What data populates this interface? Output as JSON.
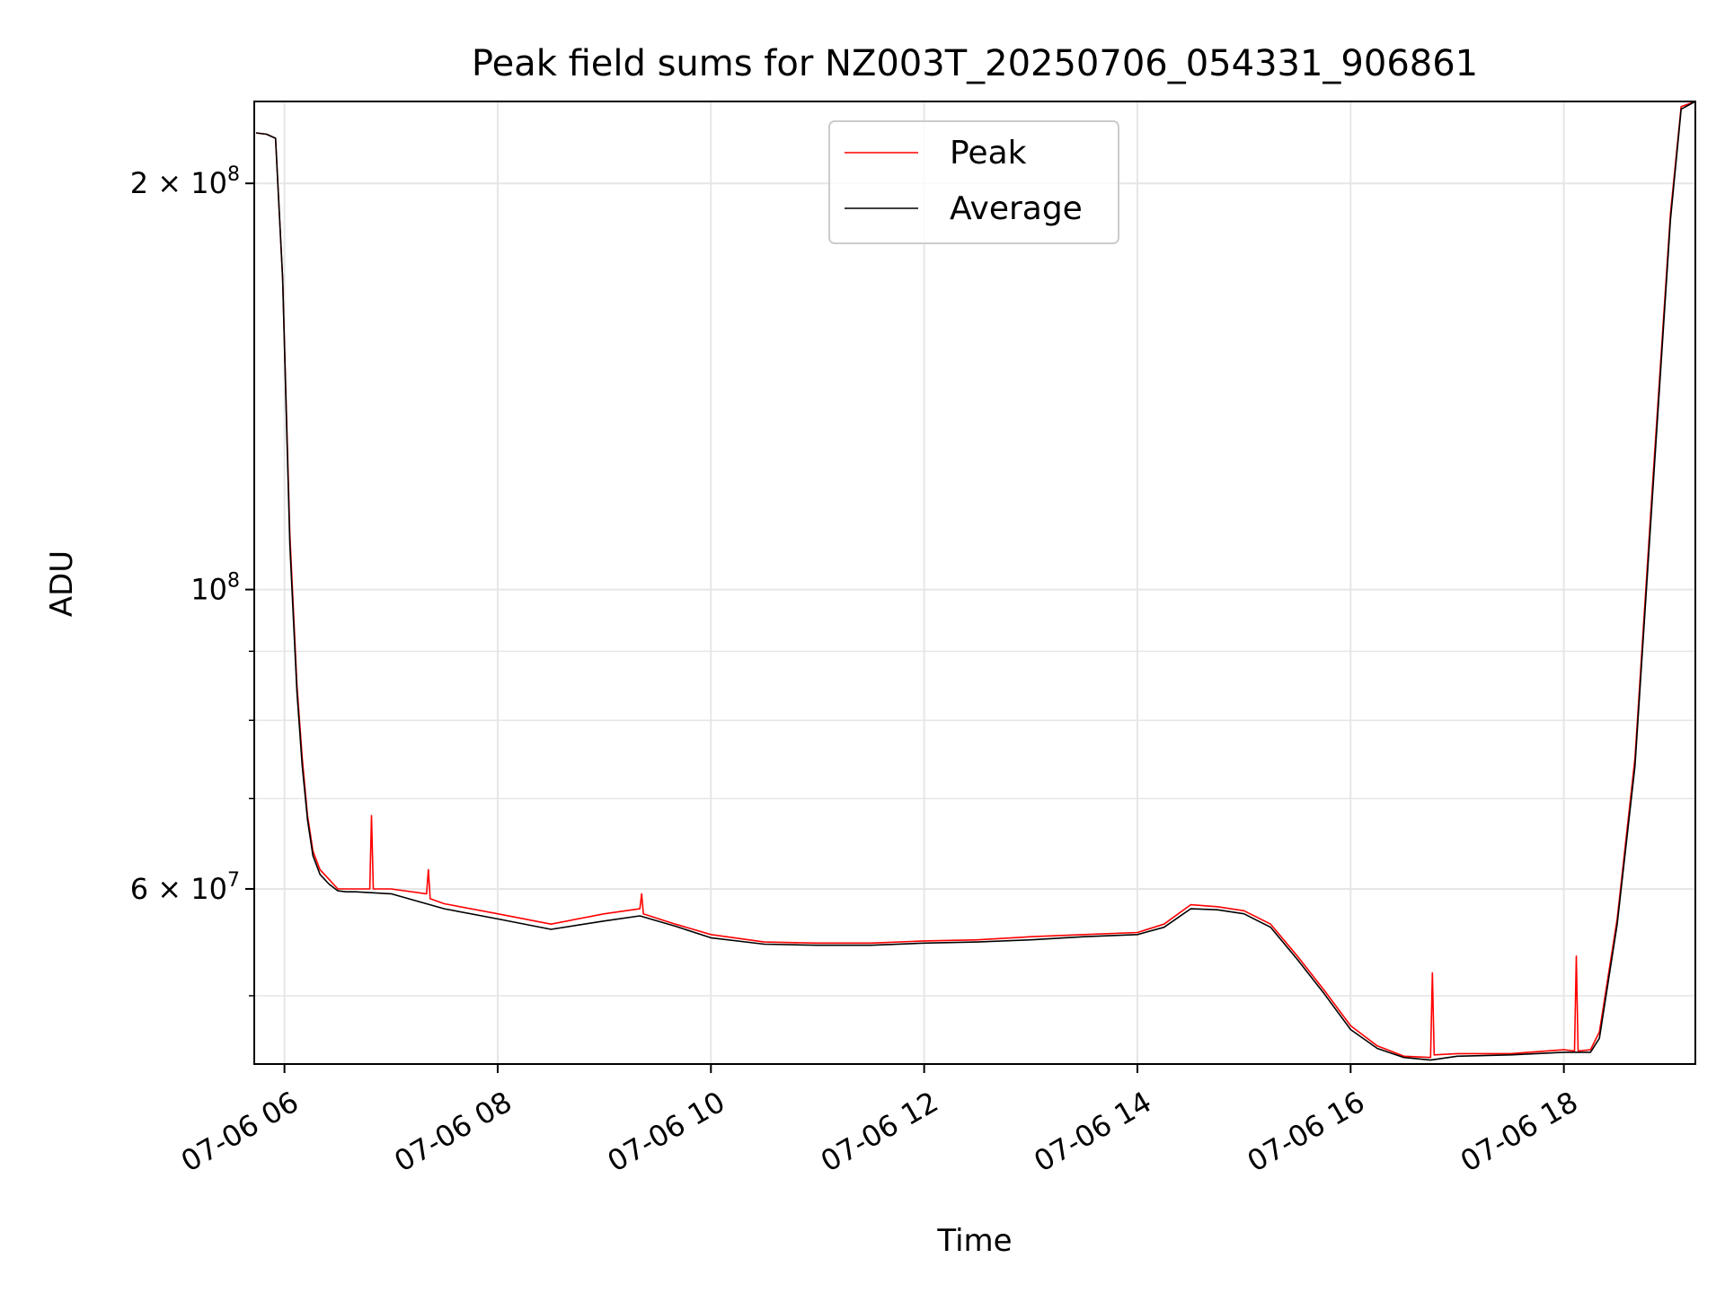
{
  "chart_data": {
    "type": "line",
    "title": "Peak field sums for NZ003T_20250706_054331_906861",
    "xlabel": "Time",
    "ylabel": "ADU",
    "yscale": "log",
    "ylim": [
      44500000,
      230000000
    ],
    "xlim": [
      "2025-07-06 05:43",
      "2025-07-06 19:14"
    ],
    "grid": true,
    "legend_position": "upper center",
    "x_ticks": [
      {
        "value": "2025-07-06 06:00",
        "label": "07-06 06"
      },
      {
        "value": "2025-07-06 08:00",
        "label": "07-06 08"
      },
      {
        "value": "2025-07-06 10:00",
        "label": "07-06 10"
      },
      {
        "value": "2025-07-06 12:00",
        "label": "07-06 12"
      },
      {
        "value": "2025-07-06 14:00",
        "label": "07-06 14"
      },
      {
        "value": "2025-07-06 16:00",
        "label": "07-06 16"
      },
      {
        "value": "2025-07-06 18:00",
        "label": "07-06 18"
      }
    ],
    "y_ticks_major": [
      {
        "value": 60000000,
        "label": "6 × 10",
        "exp": "7"
      },
      {
        "value": 100000000,
        "label": "10",
        "exp": "8"
      },
      {
        "value": 200000000,
        "label": "2 × 10",
        "exp": "8"
      }
    ],
    "y_ticks_minor": [
      50000000,
      70000000,
      80000000,
      90000000
    ],
    "series": [
      {
        "name": "Peak",
        "color": "#ff0000",
        "x": [
          "2025-07-06 05:44",
          "2025-07-06 05:50",
          "2025-07-06 05:55",
          "2025-07-06 05:59",
          "2025-07-06 06:03",
          "2025-07-06 06:07",
          "2025-07-06 06:10",
          "2025-07-06 06:13",
          "2025-07-06 06:16",
          "2025-07-06 06:20",
          "2025-07-06 06:25",
          "2025-07-06 06:30",
          "2025-07-06 06:35",
          "2025-07-06 06:40",
          "2025-07-06 06:48",
          "2025-07-06 06:49",
          "2025-07-06 06:50",
          "2025-07-06 07:00",
          "2025-07-06 07:20",
          "2025-07-06 07:21",
          "2025-07-06 07:22",
          "2025-07-06 07:30",
          "2025-07-06 08:00",
          "2025-07-06 08:30",
          "2025-07-06 09:00",
          "2025-07-06 09:20",
          "2025-07-06 09:21",
          "2025-07-06 09:22",
          "2025-07-06 09:40",
          "2025-07-06 10:00",
          "2025-07-06 10:30",
          "2025-07-06 11:00",
          "2025-07-06 11:30",
          "2025-07-06 12:00",
          "2025-07-06 12:30",
          "2025-07-06 13:00",
          "2025-07-06 13:30",
          "2025-07-06 14:00",
          "2025-07-06 14:15",
          "2025-07-06 14:30",
          "2025-07-06 14:45",
          "2025-07-06 15:00",
          "2025-07-06 15:15",
          "2025-07-06 15:30",
          "2025-07-06 15:45",
          "2025-07-06 16:00",
          "2025-07-06 16:15",
          "2025-07-06 16:30",
          "2025-07-06 16:45",
          "2025-07-06 16:46",
          "2025-07-06 16:47",
          "2025-07-06 17:00",
          "2025-07-06 17:30",
          "2025-07-06 18:00",
          "2025-07-06 18:06",
          "2025-07-06 18:07",
          "2025-07-06 18:08",
          "2025-07-06 18:15",
          "2025-07-06 18:20",
          "2025-07-06 18:30",
          "2025-07-06 18:40",
          "2025-07-06 18:50",
          "2025-07-06 19:00",
          "2025-07-06 19:06",
          "2025-07-06 19:14"
        ],
        "y": [
          218000000,
          217500000,
          216000000,
          170000000,
          110000000,
          85000000,
          75000000,
          68000000,
          64000000,
          62000000,
          61000000,
          60000000,
          60000000,
          60000000,
          60000000,
          68000000,
          60000000,
          60000000,
          59500000,
          62000000,
          59000000,
          58500000,
          57500000,
          56500000,
          57500000,
          58000000,
          59500000,
          57500000,
          56500000,
          55500000,
          54800000,
          54700000,
          54700000,
          54900000,
          55000000,
          55300000,
          55500000,
          55700000,
          56500000,
          58400000,
          58200000,
          57800000,
          56500000,
          53500000,
          50500000,
          47500000,
          45900000,
          45100000,
          45000000,
          52000000,
          45200000,
          45300000,
          45300000,
          45600000,
          45500000,
          53500000,
          45500000,
          45600000,
          47000000,
          57000000,
          75000000,
          120000000,
          190000000,
          228000000,
          230000000
        ]
      },
      {
        "name": "Average",
        "color": "#000000",
        "x": [
          "2025-07-06 05:44",
          "2025-07-06 05:50",
          "2025-07-06 05:55",
          "2025-07-06 05:59",
          "2025-07-06 06:03",
          "2025-07-06 06:07",
          "2025-07-06 06:10",
          "2025-07-06 06:13",
          "2025-07-06 06:16",
          "2025-07-06 06:20",
          "2025-07-06 06:25",
          "2025-07-06 06:30",
          "2025-07-06 06:35",
          "2025-07-06 06:40",
          "2025-07-06 07:00",
          "2025-07-06 07:30",
          "2025-07-06 08:00",
          "2025-07-06 08:30",
          "2025-07-06 09:00",
          "2025-07-06 09:20",
          "2025-07-06 09:40",
          "2025-07-06 10:00",
          "2025-07-06 10:30",
          "2025-07-06 11:00",
          "2025-07-06 11:30",
          "2025-07-06 12:00",
          "2025-07-06 12:30",
          "2025-07-06 13:00",
          "2025-07-06 13:30",
          "2025-07-06 14:00",
          "2025-07-06 14:15",
          "2025-07-06 14:30",
          "2025-07-06 14:45",
          "2025-07-06 15:00",
          "2025-07-06 15:15",
          "2025-07-06 15:30",
          "2025-07-06 15:45",
          "2025-07-06 16:00",
          "2025-07-06 16:15",
          "2025-07-06 16:30",
          "2025-07-06 16:45",
          "2025-07-06 17:00",
          "2025-07-06 17:30",
          "2025-07-06 18:00",
          "2025-07-06 18:15",
          "2025-07-06 18:20",
          "2025-07-06 18:30",
          "2025-07-06 18:40",
          "2025-07-06 18:50",
          "2025-07-06 19:00",
          "2025-07-06 19:06",
          "2025-07-06 19:14"
        ],
        "y": [
          218000000,
          217500000,
          216000000,
          170000000,
          108000000,
          84000000,
          74000000,
          67500000,
          63500000,
          61500000,
          60500000,
          59800000,
          59700000,
          59700000,
          59500000,
          58000000,
          57000000,
          56000000,
          56800000,
          57300000,
          56300000,
          55200000,
          54600000,
          54500000,
          54500000,
          54700000,
          54800000,
          55000000,
          55300000,
          55500000,
          56200000,
          58000000,
          57900000,
          57500000,
          56200000,
          53200000,
          50200000,
          47200000,
          45700000,
          45000000,
          44800000,
          45100000,
          45200000,
          45400000,
          45400000,
          46500000,
          56500000,
          74000000,
          118000000,
          188000000,
          227000000,
          230000000
        ]
      }
    ]
  }
}
